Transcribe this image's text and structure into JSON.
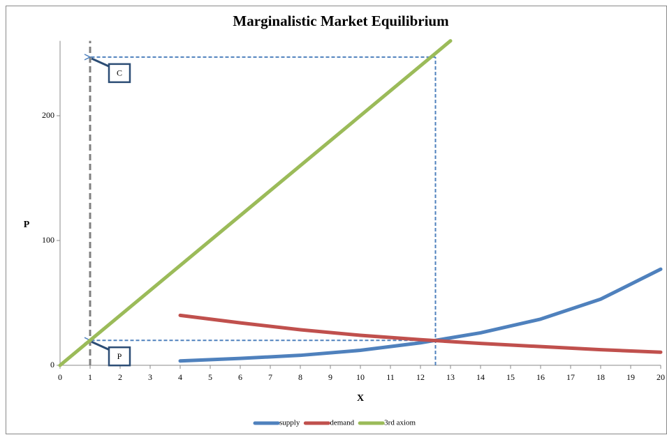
{
  "chart_data": {
    "type": "line",
    "title": "Marginalistic Market Equilibrium",
    "x_label": "X",
    "y_label": "P",
    "xlim": [
      0,
      20
    ],
    "ylim": [
      0,
      260
    ],
    "xticks": [
      0,
      1,
      2,
      3,
      4,
      5,
      6,
      7,
      8,
      9,
      10,
      11,
      12,
      13,
      14,
      15,
      16,
      17,
      18,
      19,
      20
    ],
    "yticks": [
      0,
      100,
      200
    ],
    "series": [
      {
        "name": "supply",
        "color": "#4f81bd",
        "x": [
          4,
          6,
          8,
          10,
          12,
          14,
          16,
          18,
          20
        ],
        "values": [
          3.5,
          5.5,
          8,
          12,
          18,
          26,
          37,
          53,
          77
        ]
      },
      {
        "name": "demand",
        "color": "#c0504d",
        "x": [
          4,
          6,
          8,
          10,
          12,
          14,
          16,
          18,
          20
        ],
        "values": [
          40,
          34,
          28.5,
          24,
          20.5,
          17.5,
          15,
          12.5,
          10.5
        ]
      },
      {
        "name": "3rd axiom",
        "color": "#9bbb59",
        "x": [
          0,
          13
        ],
        "values": [
          0,
          260
        ]
      }
    ],
    "reference_lines": [
      {
        "color": "#808080",
        "x": [
          1,
          1
        ],
        "values": [
          0,
          260
        ]
      },
      {
        "color": "#4f81bd",
        "x": [
          12.5,
          12.5
        ],
        "values": [
          0,
          247
        ]
      },
      {
        "color": "#4f81bd",
        "x": [
          12.5,
          1
        ],
        "values": [
          247,
          247
        ]
      },
      {
        "color": "#4f81bd",
        "x": [
          12.5,
          1
        ],
        "values": [
          20,
          20
        ]
      }
    ],
    "annotations": [
      {
        "text": "C",
        "x": 1,
        "y": 247
      },
      {
        "text": "P",
        "x": 1,
        "y": 20
      }
    ],
    "legend": "bottom"
  }
}
